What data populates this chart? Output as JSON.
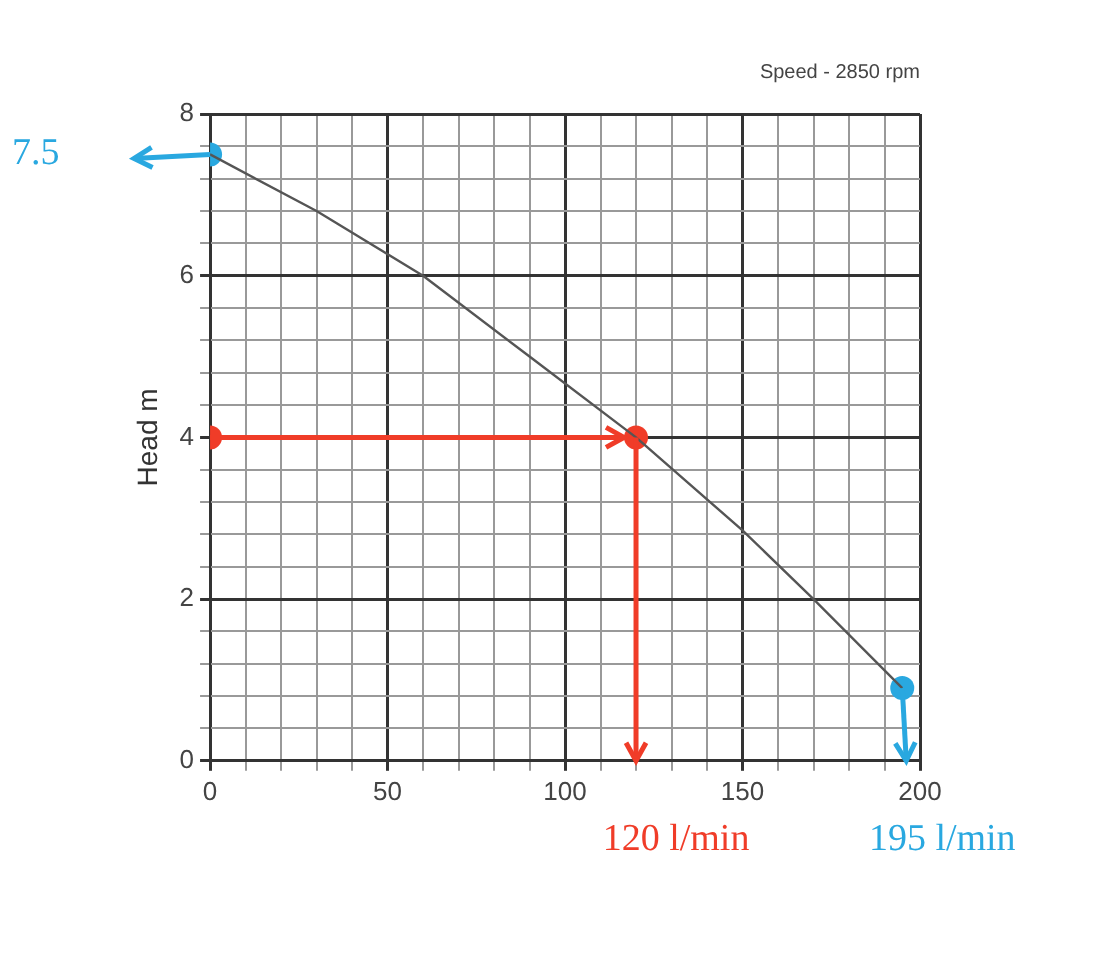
{
  "chart_data": {
    "type": "line",
    "title": "Speed - 2850 rpm",
    "ylabel": "Head m",
    "xlim": [
      0,
      200
    ],
    "ylim": [
      0,
      8
    ],
    "xticks": [
      0,
      {
        "value": 10,
        "label": null
      },
      {
        "value": 20,
        "label": null
      },
      {
        "value": 30,
        "label": null
      },
      {
        "value": 40,
        "label": null
      },
      50,
      {
        "value": 60,
        "label": null
      },
      {
        "value": 70,
        "label": null
      },
      {
        "value": 80,
        "label": null
      },
      {
        "value": 90,
        "label": null
      },
      100,
      {
        "value": 110,
        "label": null
      },
      {
        "value": 120,
        "label": null
      },
      {
        "value": 130,
        "label": null
      },
      {
        "value": 140,
        "label": null
      },
      150,
      {
        "value": 160,
        "label": null
      },
      {
        "value": 170,
        "label": null
      },
      {
        "value": 180,
        "label": null
      },
      {
        "value": 190,
        "label": null
      },
      200
    ],
    "yticks": [
      0,
      {
        "value": 0.4,
        "label": null
      },
      {
        "value": 0.8,
        "label": null
      },
      {
        "value": 1.2,
        "label": null
      },
      {
        "value": 1.6,
        "label": null
      },
      2,
      {
        "value": 2.4,
        "label": null
      },
      {
        "value": 2.8,
        "label": null
      },
      {
        "value": 3.2,
        "label": null
      },
      {
        "value": 3.6,
        "label": null
      },
      4,
      {
        "value": 4.4,
        "label": null
      },
      {
        "value": 4.8,
        "label": null
      },
      {
        "value": 5.2,
        "label": null
      },
      {
        "value": 5.6,
        "label": null
      },
      6,
      {
        "value": 6.4,
        "label": null
      },
      {
        "value": 6.8,
        "label": null
      },
      {
        "value": 7.2,
        "label": null
      },
      {
        "value": 7.6,
        "label": null
      },
      8
    ],
    "grid": true,
    "legend": false,
    "series": [
      {
        "color": "#555555",
        "marker": "none",
        "x": [
          0,
          30,
          60,
          90,
          120,
          150,
          170,
          195
        ],
        "values": [
          7.5,
          6.8,
          6.0,
          5.0,
          4.0,
          2.85,
          2.0,
          0.9
        ]
      },
      {
        "type": "scatter",
        "color": "#f03c28",
        "marker": "circle",
        "x": [
          0,
          120
        ],
        "values": [
          4,
          4
        ]
      },
      {
        "type": "scatter",
        "color": "#29a8e0",
        "marker": "circle",
        "x": [
          0,
          195
        ],
        "values": [
          7.5,
          0.9
        ]
      }
    ],
    "ref_lines": [
      {
        "axis": "y",
        "value": 4,
        "color": "#f03c28"
      },
      {
        "axis": "x",
        "value": 120,
        "color": "#f03c28"
      }
    ],
    "annotations": [
      "7.5",
      "120 l/min",
      "195 l/min"
    ]
  }
}
